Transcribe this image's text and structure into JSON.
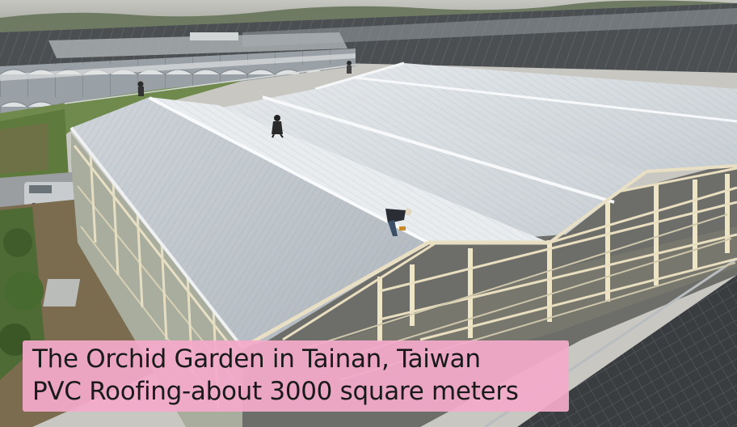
{
  "caption": {
    "line1": "The Orchid Garden in Tainan, Taiwan",
    "line2": "PVC Roofing-about 3000 square meters"
  },
  "colors": {
    "caption_background": "#f4aaca",
    "caption_text": "#1a1a1a",
    "roof": "#d9dee3",
    "frame": "#e8dfc4",
    "sky": "#b9bab4"
  }
}
